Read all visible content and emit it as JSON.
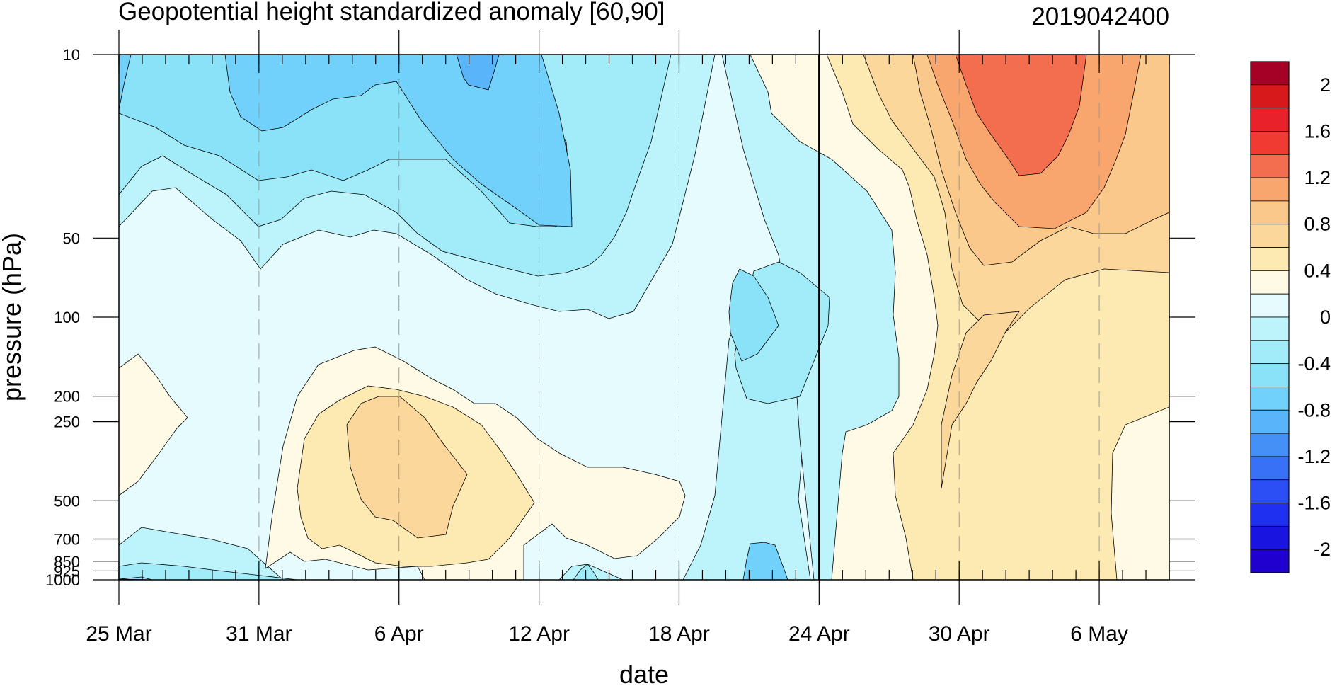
{
  "chart_data": {
    "type": "contour",
    "title": "Geopotential height standardized anomaly [60,90]",
    "date_stamp": "2019042400",
    "xlabel": "date",
    "ylabel": "pressure (hPa)",
    "y_scale": "log",
    "y_reversed": true,
    "x_tick_labels": [
      "25 Mar",
      "31 Mar",
      "6 Apr",
      "12 Apr",
      "18 Apr",
      "24 Apr",
      "30 Apr",
      "6 May"
    ],
    "x_tick_days": [
      0,
      6,
      12,
      18,
      24,
      30,
      36,
      42
    ],
    "x_range_days": [
      0,
      45
    ],
    "marked_date": "24 Apr",
    "y_ticks": [
      10,
      50,
      100,
      200,
      250,
      500,
      700,
      850,
      925,
      1000
    ],
    "y_tick_labels": [
      "10",
      "50",
      "100",
      "200",
      "250",
      "500",
      "700",
      "850",
      "925",
      "1000"
    ],
    "colorbar": {
      "labels": [
        "2",
        "1.6",
        "1.2",
        "0.8",
        "0.4",
        "0",
        "-0.4",
        "-0.8",
        "-1.2",
        "-1.6",
        "-2"
      ],
      "colors": [
        "#a50026",
        "#d7191c",
        "#e8212a",
        "#f03b32",
        "#f36d4f",
        "#f9a56e",
        "#fbc88c",
        "#fcd79b",
        "#fdeab3",
        "#fefae6",
        "#e5fbfd",
        "#bdf4fb",
        "#a2ecf9",
        "#8ae2f9",
        "#72d1fb",
        "#5ab4fa",
        "#4590f7",
        "#3870f6",
        "#2b4ff4",
        "#2030f0",
        "#1a14e0",
        "#1f00cf"
      ]
    }
  }
}
